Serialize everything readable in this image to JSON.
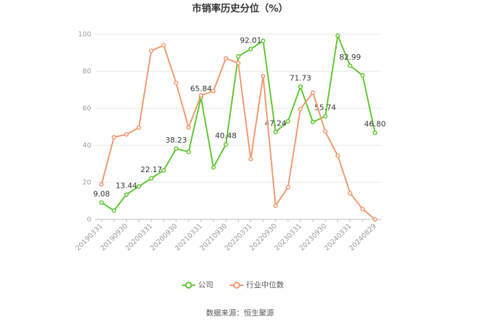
{
  "chart_data": {
    "type": "line",
    "title": "市销率历史分位（%）",
    "categories": [
      "20190331",
      null,
      "20190930",
      null,
      "20200331",
      null,
      "20200930",
      null,
      "20210331",
      null,
      "20210930",
      null,
      "20220331",
      null,
      "20220930",
      null,
      "20230331",
      null,
      "20230930",
      null,
      "20240331",
      null,
      "20240829"
    ],
    "series": [
      {
        "name": "公司",
        "color": "#5ac52c",
        "values": [
          9.08,
          4.8,
          13.44,
          17.8,
          22.17,
          26.5,
          38.23,
          36.5,
          65.84,
          28.1,
          40.48,
          88.1,
          92.01,
          96.5,
          47.24,
          53,
          71.73,
          52.6,
          55.74,
          99.3,
          82.99,
          77.8,
          46.8
        ],
        "value_labels": [
          "9.08",
          null,
          "13.44",
          null,
          "22.17",
          null,
          "38.23",
          null,
          "65.84",
          null,
          "40.48",
          null,
          "92.01",
          null,
          "47.24",
          null,
          "71.73",
          null,
          "55.74",
          null,
          "82.99",
          null,
          "46.80"
        ]
      },
      {
        "name": "行业中位数",
        "color": "#f4956a",
        "values": [
          18.9,
          44.4,
          45.9,
          49.6,
          91.1,
          94.1,
          73.7,
          49.6,
          67,
          69.3,
          87,
          84.4,
          32.6,
          77.4,
          7.4,
          17.4,
          59.6,
          68.5,
          47.4,
          34.4,
          14.1,
          5.6,
          0
        ]
      }
    ],
    "ylim": [
      0,
      100
    ],
    "yticks": [
      0,
      20,
      40,
      60,
      80,
      100
    ],
    "grid": true,
    "source": "数据来源：恒生聚源"
  }
}
